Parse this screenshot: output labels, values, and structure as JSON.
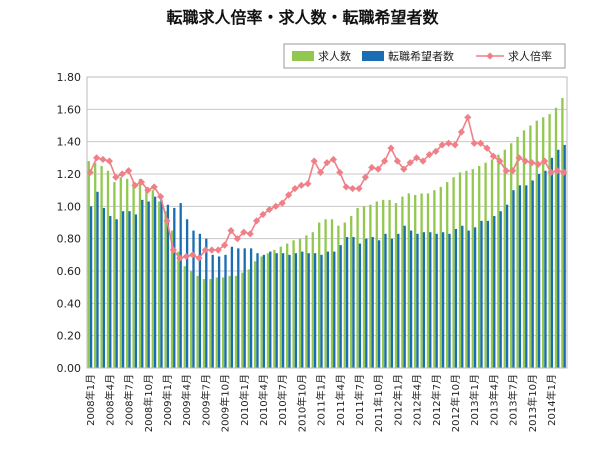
{
  "chart_data": {
    "type": "bar",
    "title": "転職求人倍率・求人数・転職希望者数",
    "legend_position": "top-right",
    "grid": true,
    "ylim": [
      0,
      1.8
    ],
    "yticks": [
      "0.00",
      "0.20",
      "0.40",
      "0.60",
      "0.80",
      "1.00",
      "1.20",
      "1.40",
      "1.60",
      "1.80"
    ],
    "categories": [
      "2008年1月",
      "2008年2月",
      "2008年3月",
      "2008年4月",
      "2008年5月",
      "2008年6月",
      "2008年7月",
      "2008年8月",
      "2008年9月",
      "2008年10月",
      "2008年11月",
      "2008年12月",
      "2009年1月",
      "2009年2月",
      "2009年3月",
      "2009年4月",
      "2009年5月",
      "2009年6月",
      "2009年7月",
      "2009年8月",
      "2009年9月",
      "2009年10月",
      "2009年11月",
      "2009年12月",
      "2010年1月",
      "2010年2月",
      "2010年3月",
      "2010年4月",
      "2010年5月",
      "2010年6月",
      "2010年7月",
      "2010年8月",
      "2010年9月",
      "2010年10月",
      "2010年11月",
      "2010年12月",
      "2011年1月",
      "2011年2月",
      "2011年3月",
      "2011年4月",
      "2011年5月",
      "2011年6月",
      "2011年7月",
      "2011年8月",
      "2011年9月",
      "2011年10月",
      "2011年11月",
      "2011年12月",
      "2012年1月",
      "2012年2月",
      "2012年3月",
      "2012年4月",
      "2012年5月",
      "2012年6月",
      "2012年7月",
      "2012年8月",
      "2012年9月",
      "2012年10月",
      "2012年11月",
      "2012年12月",
      "2013年1月",
      "2013年2月",
      "2013年3月",
      "2013年4月",
      "2013年5月",
      "2013年6月",
      "2013年7月",
      "2013年8月",
      "2013年9月",
      "2013年10月",
      "2013年11月",
      "2013年12月",
      "2014年1月",
      "2014年2月",
      "2014年3月"
    ],
    "xtick_labels": [
      "2008年1月",
      "2008年4月",
      "2008年7月",
      "2008年10月",
      "2009年1月",
      "2009年4月",
      "2009年7月",
      "2009年10月",
      "2010年1月",
      "2010年4月",
      "2010年7月",
      "2010年10月",
      "2011年1月",
      "2011年4月",
      "2011年7月",
      "2011年10月",
      "2012年1月",
      "2012年4月",
      "2012年7月",
      "2012年10月",
      "2013年1月",
      "2013年4月",
      "2013年7月",
      "2013年10月",
      "2014年1月"
    ],
    "series": [
      {
        "name": "求人数",
        "type": "bar",
        "color": "#92c84f",
        "values": [
          1.28,
          1.27,
          1.25,
          1.22,
          1.15,
          1.18,
          1.17,
          1.15,
          1.17,
          1.12,
          1.1,
          1.03,
          0.97,
          0.85,
          0.72,
          0.63,
          0.6,
          0.57,
          0.55,
          0.55,
          0.56,
          0.56,
          0.57,
          0.57,
          0.59,
          0.61,
          0.66,
          0.69,
          0.71,
          0.73,
          0.75,
          0.77,
          0.79,
          0.8,
          0.82,
          0.84,
          0.9,
          0.92,
          0.92,
          0.88,
          0.9,
          0.94,
          0.99,
          1.0,
          1.01,
          1.03,
          1.04,
          1.04,
          1.02,
          1.06,
          1.08,
          1.07,
          1.08,
          1.08,
          1.1,
          1.12,
          1.15,
          1.18,
          1.21,
          1.22,
          1.23,
          1.25,
          1.27,
          1.29,
          1.32,
          1.35,
          1.39,
          1.43,
          1.47,
          1.5,
          1.53,
          1.55,
          1.57,
          1.61,
          1.67
        ]
      },
      {
        "name": "転職希望者数",
        "type": "bar",
        "color": "#1b6db3",
        "values": [
          1.0,
          1.09,
          0.99,
          0.94,
          0.92,
          0.97,
          0.97,
          0.95,
          1.04,
          1.03,
          1.06,
          1.04,
          1.01,
          0.99,
          1.02,
          0.92,
          0.85,
          0.83,
          0.8,
          0.7,
          0.69,
          0.7,
          0.75,
          0.74,
          0.74,
          0.74,
          0.71,
          0.7,
          0.72,
          0.71,
          0.71,
          0.7,
          0.71,
          0.72,
          0.71,
          0.71,
          0.7,
          0.72,
          0.72,
          0.76,
          0.81,
          0.81,
          0.77,
          0.8,
          0.81,
          0.79,
          0.83,
          0.8,
          0.83,
          0.88,
          0.85,
          0.83,
          0.84,
          0.84,
          0.83,
          0.84,
          0.83,
          0.86,
          0.88,
          0.85,
          0.87,
          0.91,
          0.91,
          0.94,
          0.97,
          1.01,
          1.1,
          1.13,
          1.13,
          1.16,
          1.2,
          1.22,
          1.3,
          1.35,
          1.38
        ]
      },
      {
        "name": "求人倍率",
        "type": "line",
        "color": "#f08088",
        "values": [
          1.21,
          1.3,
          1.29,
          1.28,
          1.18,
          1.2,
          1.22,
          1.13,
          1.15,
          1.1,
          1.12,
          1.06,
          0.91,
          0.73,
          0.68,
          0.69,
          0.7,
          0.68,
          0.73,
          0.73,
          0.73,
          0.76,
          0.85,
          0.8,
          0.84,
          0.83,
          0.91,
          0.95,
          0.98,
          1.0,
          1.02,
          1.07,
          1.11,
          1.13,
          1.14,
          1.28,
          1.21,
          1.27,
          1.29,
          1.21,
          1.12,
          1.11,
          1.11,
          1.18,
          1.24,
          1.23,
          1.28,
          1.36,
          1.28,
          1.23,
          1.27,
          1.3,
          1.28,
          1.32,
          1.34,
          1.38,
          1.39,
          1.38,
          1.46,
          1.55,
          1.39,
          1.39,
          1.36,
          1.31,
          1.28,
          1.22,
          1.22,
          1.3,
          1.28,
          1.27,
          1.26,
          1.28,
          1.21,
          1.22,
          1.21
        ]
      }
    ]
  }
}
